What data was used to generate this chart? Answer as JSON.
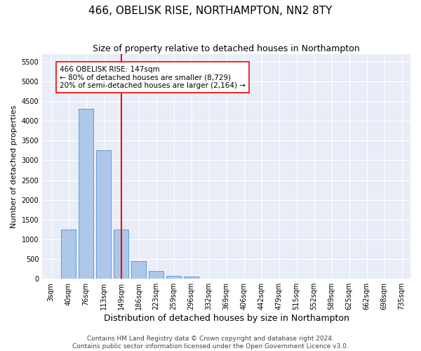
{
  "title1": "466, OBELISK RISE, NORTHAMPTON, NN2 8TY",
  "title2": "Size of property relative to detached houses in Northampton",
  "xlabel": "Distribution of detached houses by size in Northampton",
  "ylabel": "Number of detached properties",
  "categories": [
    "3sqm",
    "40sqm",
    "76sqm",
    "113sqm",
    "149sqm",
    "186sqm",
    "223sqm",
    "259sqm",
    "296sqm",
    "332sqm",
    "369sqm",
    "406sqm",
    "442sqm",
    "479sqm",
    "515sqm",
    "552sqm",
    "589sqm",
    "625sqm",
    "662sqm",
    "698sqm",
    "735sqm"
  ],
  "values": [
    0,
    1250,
    4300,
    3250,
    1250,
    450,
    200,
    80,
    60,
    0,
    0,
    0,
    0,
    0,
    0,
    0,
    0,
    0,
    0,
    0,
    0
  ],
  "bar_color": "#aec6e8",
  "bar_edge_color": "#5b9bd5",
  "vline_x_index": 4,
  "vline_color": "red",
  "annotation_text": "466 OBELISK RISE: 147sqm\n← 80% of detached houses are smaller (8,729)\n20% of semi-detached houses are larger (2,164) →",
  "annotation_box_color": "white",
  "annotation_box_edge_color": "red",
  "ylim": [
    0,
    5700
  ],
  "yticks": [
    0,
    500,
    1000,
    1500,
    2000,
    2500,
    3000,
    3500,
    4000,
    4500,
    5000,
    5500
  ],
  "background_color": "#e8edf8",
  "grid_color": "white",
  "footer": "Contains HM Land Registry data © Crown copyright and database right 2024.\nContains public sector information licensed under the Open Government Licence v3.0.",
  "title1_fontsize": 11,
  "title2_fontsize": 9,
  "xlabel_fontsize": 9,
  "ylabel_fontsize": 8,
  "tick_fontsize": 7,
  "footer_fontsize": 6.5,
  "annot_fontsize": 7.5
}
